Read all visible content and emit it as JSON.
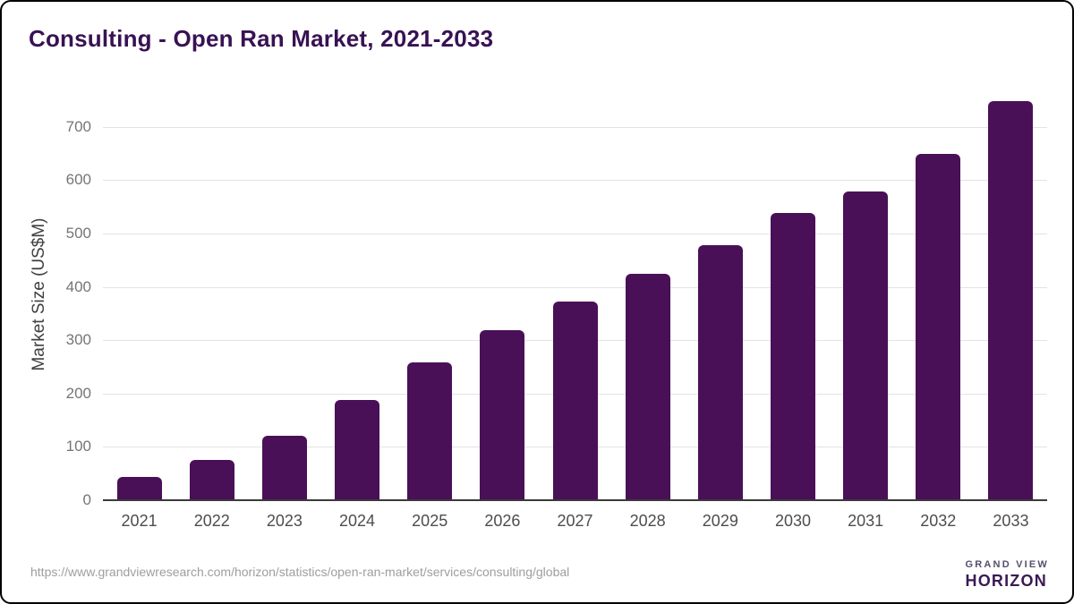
{
  "page": {
    "title": "Consulting - Open Ran Market, 2021-2033",
    "source_url": "https://www.grandviewresearch.com/horizon/statistics/open-ran-market/services/consulting/global"
  },
  "chart_data": {
    "type": "bar",
    "title": "Consulting - Open Ran Market, 2021-2033",
    "categories": [
      "2021",
      "2022",
      "2023",
      "2024",
      "2025",
      "2026",
      "2027",
      "2028",
      "2029",
      "2030",
      "2031",
      "2032",
      "2033"
    ],
    "values": [
      45,
      77,
      123,
      189,
      260,
      320,
      374,
      427,
      480,
      540,
      580,
      652,
      750
    ],
    "xlabel": "",
    "ylabel": "Market Size (US$M)",
    "ylim": [
      0,
      777
    ],
    "yticks": [
      0,
      100,
      200,
      300,
      400,
      500,
      600,
      700
    ],
    "grid": true,
    "legend_position": "none",
    "bar_color": "#4a1057",
    "gridline_color": "#e3e3e3",
    "baseline_color": "#3a3a3a"
  },
  "branding": {
    "logo_icon": "horizon-sunrise-icon",
    "line1": "GRAND VIEW",
    "line2": "HORIZON",
    "purple": "#2f1c45",
    "blue": "#5fc4ec"
  }
}
